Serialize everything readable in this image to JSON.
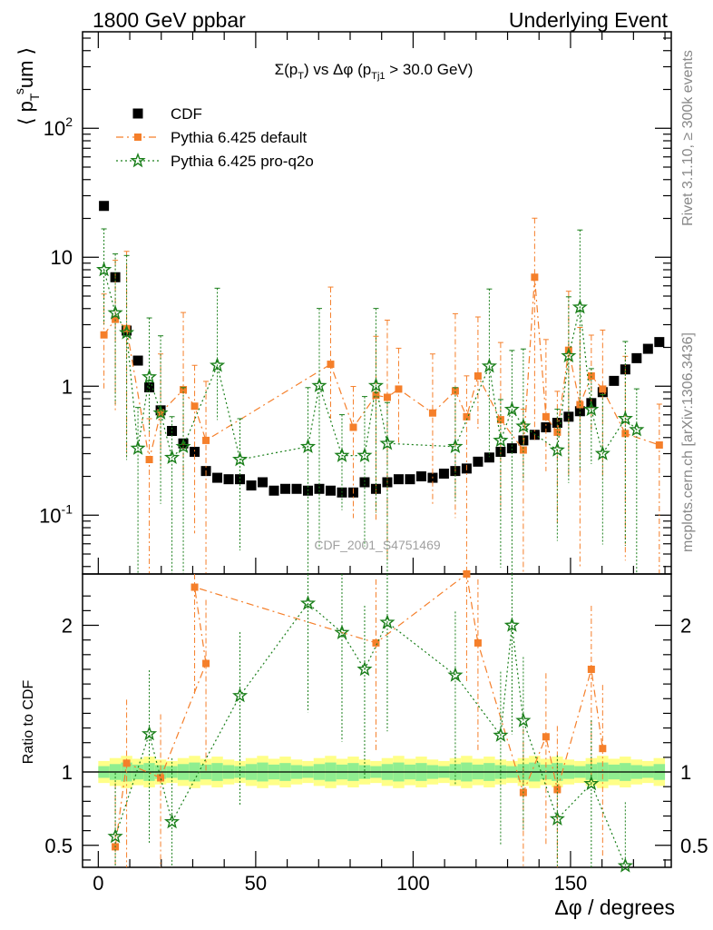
{
  "header": {
    "left": "1800 GeV ppbar",
    "right": "Underlying Event"
  },
  "side_labels": {
    "rivet": "Rivet 3.1.10, ≥ 300k events",
    "mcplots": "mcplots.cern.ch [arXiv:1306.3436]"
  },
  "watermark": "CDF_2001_S4751469",
  "chart_data": [
    {
      "type": "scatter",
      "panel": "main",
      "title": "Σ(p_T) vs Δφ (p_Tj1 > 30.0 GeV)",
      "ylabel": "⟨ p_T^sum ⟩",
      "yscale": "log",
      "ylim": [
        0.035,
        560
      ],
      "xlim": [
        -5,
        182
      ],
      "y_tick_labels": [
        "10^-1",
        "1",
        "10",
        "10^2"
      ],
      "legend_placement": "top-left",
      "series": [
        {
          "name": "CDF",
          "color": "#000000",
          "marker": "square",
          "x": [
            1.8,
            5.4,
            9,
            12.6,
            16.2,
            19.8,
            23.4,
            27,
            30.6,
            34.2,
            37.8,
            41.4,
            45,
            48.6,
            52.2,
            55.8,
            59.4,
            63,
            66.6,
            70.2,
            73.8,
            77.4,
            81,
            84.6,
            88.2,
            91.8,
            95.4,
            99,
            102.6,
            106.2,
            109.8,
            113.4,
            117,
            120.6,
            124.2,
            127.8,
            131.4,
            135,
            138.6,
            142.2,
            145.8,
            149.4,
            153,
            156.6,
            160.2,
            163.8,
            167.4,
            171,
            174.6,
            178.2
          ],
          "y": [
            25,
            7.0,
            2.7,
            1.58,
            0.98,
            0.65,
            0.45,
            0.36,
            0.31,
            0.22,
            0.195,
            0.19,
            0.19,
            0.17,
            0.18,
            0.155,
            0.16,
            0.16,
            0.155,
            0.16,
            0.155,
            0.15,
            0.15,
            0.18,
            0.16,
            0.18,
            0.19,
            0.19,
            0.2,
            0.195,
            0.21,
            0.22,
            0.23,
            0.26,
            0.28,
            0.31,
            0.33,
            0.38,
            0.42,
            0.48,
            0.52,
            0.58,
            0.64,
            0.74,
            0.9,
            1.1,
            1.35,
            1.65,
            1.95,
            2.2
          ]
        },
        {
          "name": "Pythia 6.425 default",
          "color": "#f57f2a",
          "marker": "square",
          "line": "dash-dot",
          "x": [
            1.8,
            5.4,
            9,
            16.2,
            19.8,
            27,
            30.6,
            34.2,
            73.8,
            81,
            88.2,
            91.8,
            95.4,
            106.2,
            113.4,
            117,
            120.6,
            127.8,
            135,
            138.6,
            142.2,
            145.8,
            149.4,
            153,
            156.6,
            160.2,
            167.4,
            178.2
          ],
          "y": [
            2.5,
            3.3,
            2.8,
            0.27,
            0.62,
            0.94,
            0.7,
            0.38,
            1.48,
            0.48,
            0.85,
            0.82,
            0.95,
            0.62,
            0.92,
            0.58,
            1.2,
            0.55,
            0.32,
            7.0,
            0.58,
            0.44,
            1.9,
            0.72,
            1.2,
            0.95,
            0.43,
            0.35
          ]
        },
        {
          "name": "Pythia 6.425 pro-q2o",
          "color": "#1a7f1a",
          "marker": "star",
          "line": "dotted",
          "x": [
            1.8,
            5.4,
            9,
            12.6,
            16.2,
            19.8,
            23.4,
            27,
            37.8,
            45,
            66.6,
            70.2,
            77.4,
            84.6,
            88.2,
            91.8,
            113.4,
            124.2,
            127.8,
            131.4,
            135,
            145.8,
            149.4,
            153,
            156.6,
            160.2,
            167.4,
            171
          ],
          "y": [
            8.0,
            3.7,
            2.6,
            0.33,
            1.18,
            0.62,
            0.28,
            0.34,
            1.45,
            0.27,
            0.34,
            1.01,
            0.29,
            0.29,
            1.01,
            0.36,
            0.34,
            1.43,
            0.38,
            0.66,
            0.49,
            0.32,
            1.72,
            4.1,
            0.66,
            0.3,
            0.56,
            0.46
          ]
        }
      ]
    },
    {
      "type": "scatter",
      "panel": "ratio",
      "ylabel": "Ratio to CDF",
      "xlabel": "Δφ / degrees",
      "ylim": [
        0.35,
        2.35
      ],
      "xlim": [
        -5,
        182
      ],
      "x_ticks": [
        0,
        50,
        100,
        150
      ],
      "y_ticks": [
        0.5,
        1,
        2
      ],
      "band_inner_halfwidth": 0.04,
      "band_outer_halfwidth": 0.075,
      "series": [
        {
          "name": "Pythia 6.425 default",
          "color": "#f57f2a",
          "x": [
            5.4,
            9,
            19.8,
            34.2,
            30.6,
            88.2,
            117,
            120.6,
            135,
            142.2,
            145.8,
            156.6,
            160.2
          ],
          "y": [
            0.49,
            1.06,
            0.96,
            1.74,
            2.26,
            1.88,
            2.35,
            1.88,
            0.86,
            1.24,
            0.88,
            1.7,
            1.16
          ]
        },
        {
          "name": "Pythia 6.425 pro-q2o",
          "color": "#1a7f1a",
          "x": [
            5.4,
            16.2,
            23.4,
            45,
            66.6,
            77.4,
            84.6,
            91.8,
            113.4,
            127.8,
            131.4,
            135,
            145.8,
            156.6,
            167.4
          ],
          "y": [
            0.56,
            1.26,
            0.66,
            1.52,
            2.15,
            1.95,
            1.7,
            2.02,
            1.66,
            1.25,
            2.0,
            1.35,
            0.68,
            0.92,
            0.36
          ]
        }
      ]
    }
  ]
}
